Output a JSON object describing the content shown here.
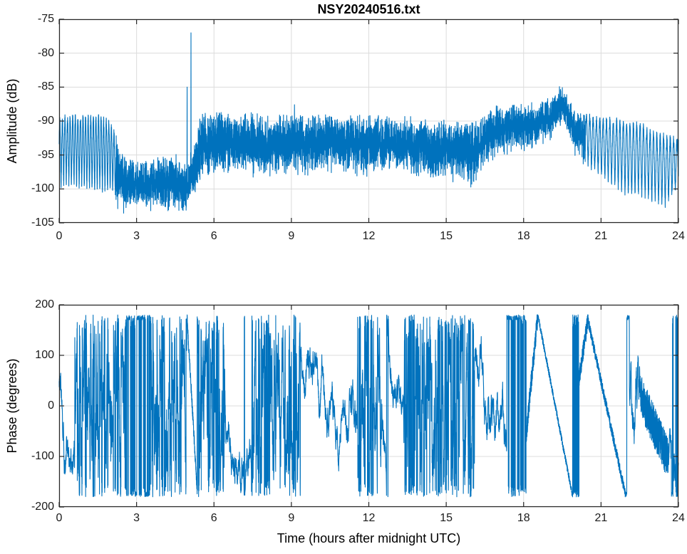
{
  "colors": {
    "line": "#0072BD",
    "grid": "#dcdcdc",
    "axis": "#262626",
    "background": "#ffffff"
  },
  "figure": {
    "title": "NSY20240516.txt"
  },
  "chart_data": [
    {
      "type": "line",
      "title": "NSY20240516.txt",
      "ylabel": "Amplitude (dB)",
      "xlabel": "",
      "xlim": [
        0,
        24
      ],
      "ylim": [
        -105,
        -75
      ],
      "xticks": [
        0,
        3,
        6,
        9,
        12,
        15,
        18,
        21,
        24
      ],
      "yticks": [
        -75,
        -80,
        -85,
        -90,
        -95,
        -100,
        -105
      ],
      "grid": true,
      "legend": null,
      "line_color": "#0072BD",
      "envelope": {
        "t_step": 0.5,
        "upper": [
          -90,
          -89.5,
          -89.5,
          -89.5,
          -90.5,
          -96,
          -96.5,
          -96.5,
          -96,
          -95.5,
          -97,
          -89.5,
          -89.5,
          -89,
          -89.5,
          -89.5,
          -90,
          -89.5,
          -89.5,
          -89.5,
          -90,
          -89.5,
          -90,
          -90,
          -90,
          -90,
          -90.5,
          -90,
          -90.5,
          -91,
          -90.5,
          -91,
          -91,
          -89.5,
          -88.5,
          -88,
          -88,
          -88,
          -87.5,
          -85.2,
          -89,
          -89.5,
          -90,
          -90,
          -90.5,
          -90.5,
          -92,
          -92.5,
          -93
        ],
        "lower": [
          -100,
          -100,
          -100.5,
          -101,
          -101,
          -102.5,
          -102,
          -102,
          -102,
          -102.5,
          -103,
          -97.5,
          -97,
          -96.5,
          -96.5,
          -97,
          -97,
          -96.5,
          -96.5,
          -97,
          -97,
          -96.5,
          -96.5,
          -97,
          -97,
          -96.5,
          -96.5,
          -97,
          -97.5,
          -98,
          -97.5,
          -98,
          -98.5,
          -96,
          -94,
          -93.5,
          -93.5,
          -93,
          -92,
          -89.5,
          -94,
          -97,
          -98.5,
          -100,
          -101.5,
          -101.5,
          -102.5,
          -103,
          -100
        ]
      },
      "spikes": [
        {
          "t": 4.35,
          "v": -95.8
        },
        {
          "t": 4.96,
          "v": -85
        },
        {
          "t": 5.11,
          "v": -77
        },
        {
          "t": 9.12,
          "v": -87.6
        }
      ],
      "comb_regions": [
        {
          "from": 0,
          "to": 2.2,
          "period": 0.1
        },
        {
          "from": 20.4,
          "to": 24,
          "period": 0.13
        }
      ]
    },
    {
      "type": "line",
      "title": "",
      "ylabel": "Phase (degrees)",
      "xlabel": "Time (hours after midnight UTC)",
      "xlim": [
        0,
        24
      ],
      "ylim": [
        -200,
        200
      ],
      "xticks": [
        0,
        3,
        6,
        9,
        12,
        15,
        18,
        21,
        24
      ],
      "yticks": [
        200,
        100,
        0,
        -100,
        -200
      ],
      "grid": true,
      "legend": null,
      "line_color": "#0072BD",
      "clip": [
        -180,
        180
      ],
      "segments": [
        {
          "type": "walk",
          "from": 0,
          "to": 0.6,
          "start": 60,
          "step": 18,
          "min": -135,
          "max": 88
        },
        {
          "type": "chaos",
          "from": 0.6,
          "to": 2.55,
          "step": 55
        },
        {
          "type": "bars",
          "from": 2.55,
          "to": 3.5
        },
        {
          "type": "chaos",
          "from": 3.5,
          "to": 4.95,
          "step": 65
        },
        {
          "type": "ramp",
          "from": 4.95,
          "to": 5.35,
          "v0": 178,
          "v1": -165,
          "noise": 12
        },
        {
          "type": "chaos",
          "from": 5.35,
          "to": 6.45,
          "step": 60
        },
        {
          "type": "walk",
          "from": 6.45,
          "to": 7.45,
          "start": -30,
          "step": 16
        },
        {
          "type": "chaos",
          "from": 7.45,
          "to": 9.35,
          "step": 60
        },
        {
          "type": "walk",
          "from": 9.35,
          "to": 11.55,
          "start": 90,
          "step": 15
        },
        {
          "type": "chaos",
          "from": 11.55,
          "to": 12.5,
          "step": 55
        },
        {
          "type": "walk",
          "from": 12.5,
          "to": 13.35,
          "start": -40,
          "step": 16
        },
        {
          "type": "chaos",
          "from": 13.35,
          "to": 16.1,
          "step": 65
        },
        {
          "type": "walk",
          "from": 16.1,
          "to": 17.35,
          "start": 110,
          "step": 18
        },
        {
          "type": "bars",
          "from": 17.35,
          "to": 18.1
        },
        {
          "type": "ramp",
          "from": 18.1,
          "to": 18.55,
          "v0": -55,
          "v1": 178,
          "noise": 22
        },
        {
          "type": "ramp",
          "from": 18.55,
          "to": 19.9,
          "v0": 180,
          "v1": -178,
          "noise": 7
        },
        {
          "type": "bars",
          "from": 19.9,
          "to": 20.15
        },
        {
          "type": "ramp",
          "from": 20.15,
          "to": 20.5,
          "v0": 55,
          "v1": 172,
          "noise": 18
        },
        {
          "type": "ramp",
          "from": 20.5,
          "to": 21.95,
          "v0": 168,
          "v1": -176,
          "noise": 11
        },
        {
          "type": "bars",
          "from": 21.95,
          "to": 22.1
        },
        {
          "type": "walk",
          "from": 22.1,
          "to": 22.5,
          "start": 30,
          "step": 25,
          "max": 115
        },
        {
          "type": "ramp",
          "from": 22.5,
          "to": 23.6,
          "v0": 25,
          "v1": -105,
          "noise": 42
        },
        {
          "type": "walk",
          "from": 23.6,
          "to": 23.73,
          "start": -100,
          "step": 20
        },
        {
          "type": "bars",
          "from": 23.73,
          "to": 23.8
        },
        {
          "type": "walk",
          "from": 23.8,
          "to": 24,
          "start": -95,
          "step": 25
        }
      ]
    }
  ]
}
